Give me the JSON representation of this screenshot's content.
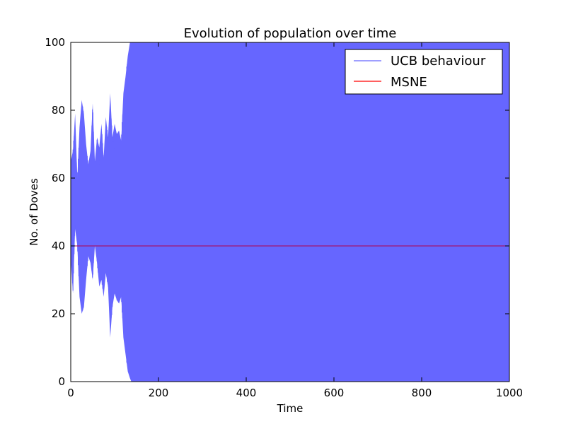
{
  "chart_data": {
    "type": "line",
    "title": "Evolution of population over time",
    "xlabel": "Time",
    "ylabel": "No. of Doves",
    "xlim": [
      0,
      1000
    ],
    "ylim": [
      0,
      100
    ],
    "xticks": [
      "0",
      "200",
      "400",
      "600",
      "800",
      "1000"
    ],
    "yticks": [
      "0",
      "20",
      "40",
      "60",
      "80",
      "100"
    ],
    "grid": false,
    "legend_position": "top-right",
    "series": [
      {
        "name": "UCB behaviour",
        "color": "#6666ff",
        "description": "oscillating",
        "envelope": {
          "x": [
            0,
            5,
            10,
            15,
            20,
            25,
            30,
            35,
            40,
            45,
            50,
            55,
            60,
            65,
            70,
            75,
            80,
            85,
            90,
            95,
            100,
            105,
            110,
            115,
            120,
            125,
            130,
            135,
            138,
            140,
            1000
          ],
          "upper": [
            65,
            68,
            79,
            60,
            75,
            83,
            79,
            70,
            64,
            68,
            82,
            65,
            72,
            69,
            76,
            66,
            78,
            72,
            85,
            72,
            76,
            73,
            74,
            71,
            85,
            90,
            96,
            100,
            100,
            100,
            100
          ],
          "lower": [
            36,
            26,
            45,
            40,
            25,
            20,
            22,
            30,
            37,
            35,
            30,
            40,
            35,
            28,
            30,
            25,
            32,
            28,
            13,
            22,
            26,
            24,
            23,
            25,
            13,
            8,
            3,
            1,
            0,
            0,
            0
          ]
        }
      },
      {
        "name": "MSNE",
        "color": "#ff0000",
        "value": 40
      }
    ]
  }
}
